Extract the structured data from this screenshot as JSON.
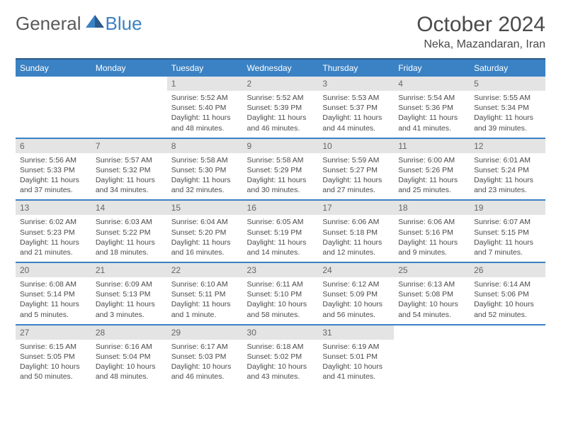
{
  "logo": {
    "general": "General",
    "blue": "Blue"
  },
  "title": "October 2024",
  "location": "Neka, Mazandaran, Iran",
  "colors": {
    "header_bg": "#3b82c4",
    "header_border": "#2c5a8a",
    "daynum_bg": "#e4e4e4",
    "text": "#4a4a4a"
  },
  "weekdays": [
    "Sunday",
    "Monday",
    "Tuesday",
    "Wednesday",
    "Thursday",
    "Friday",
    "Saturday"
  ],
  "weeks": [
    [
      null,
      null,
      {
        "n": "1",
        "sr": "5:52 AM",
        "ss": "5:40 PM",
        "dl": "11 hours and 48 minutes."
      },
      {
        "n": "2",
        "sr": "5:52 AM",
        "ss": "5:39 PM",
        "dl": "11 hours and 46 minutes."
      },
      {
        "n": "3",
        "sr": "5:53 AM",
        "ss": "5:37 PM",
        "dl": "11 hours and 44 minutes."
      },
      {
        "n": "4",
        "sr": "5:54 AM",
        "ss": "5:36 PM",
        "dl": "11 hours and 41 minutes."
      },
      {
        "n": "5",
        "sr": "5:55 AM",
        "ss": "5:34 PM",
        "dl": "11 hours and 39 minutes."
      }
    ],
    [
      {
        "n": "6",
        "sr": "5:56 AM",
        "ss": "5:33 PM",
        "dl": "11 hours and 37 minutes."
      },
      {
        "n": "7",
        "sr": "5:57 AM",
        "ss": "5:32 PM",
        "dl": "11 hours and 34 minutes."
      },
      {
        "n": "8",
        "sr": "5:58 AM",
        "ss": "5:30 PM",
        "dl": "11 hours and 32 minutes."
      },
      {
        "n": "9",
        "sr": "5:58 AM",
        "ss": "5:29 PM",
        "dl": "11 hours and 30 minutes."
      },
      {
        "n": "10",
        "sr": "5:59 AM",
        "ss": "5:27 PM",
        "dl": "11 hours and 27 minutes."
      },
      {
        "n": "11",
        "sr": "6:00 AM",
        "ss": "5:26 PM",
        "dl": "11 hours and 25 minutes."
      },
      {
        "n": "12",
        "sr": "6:01 AM",
        "ss": "5:24 PM",
        "dl": "11 hours and 23 minutes."
      }
    ],
    [
      {
        "n": "13",
        "sr": "6:02 AM",
        "ss": "5:23 PM",
        "dl": "11 hours and 21 minutes."
      },
      {
        "n": "14",
        "sr": "6:03 AM",
        "ss": "5:22 PM",
        "dl": "11 hours and 18 minutes."
      },
      {
        "n": "15",
        "sr": "6:04 AM",
        "ss": "5:20 PM",
        "dl": "11 hours and 16 minutes."
      },
      {
        "n": "16",
        "sr": "6:05 AM",
        "ss": "5:19 PM",
        "dl": "11 hours and 14 minutes."
      },
      {
        "n": "17",
        "sr": "6:06 AM",
        "ss": "5:18 PM",
        "dl": "11 hours and 12 minutes."
      },
      {
        "n": "18",
        "sr": "6:06 AM",
        "ss": "5:16 PM",
        "dl": "11 hours and 9 minutes."
      },
      {
        "n": "19",
        "sr": "6:07 AM",
        "ss": "5:15 PM",
        "dl": "11 hours and 7 minutes."
      }
    ],
    [
      {
        "n": "20",
        "sr": "6:08 AM",
        "ss": "5:14 PM",
        "dl": "11 hours and 5 minutes."
      },
      {
        "n": "21",
        "sr": "6:09 AM",
        "ss": "5:13 PM",
        "dl": "11 hours and 3 minutes."
      },
      {
        "n": "22",
        "sr": "6:10 AM",
        "ss": "5:11 PM",
        "dl": "11 hours and 1 minute."
      },
      {
        "n": "23",
        "sr": "6:11 AM",
        "ss": "5:10 PM",
        "dl": "10 hours and 58 minutes."
      },
      {
        "n": "24",
        "sr": "6:12 AM",
        "ss": "5:09 PM",
        "dl": "10 hours and 56 minutes."
      },
      {
        "n": "25",
        "sr": "6:13 AM",
        "ss": "5:08 PM",
        "dl": "10 hours and 54 minutes."
      },
      {
        "n": "26",
        "sr": "6:14 AM",
        "ss": "5:06 PM",
        "dl": "10 hours and 52 minutes."
      }
    ],
    [
      {
        "n": "27",
        "sr": "6:15 AM",
        "ss": "5:05 PM",
        "dl": "10 hours and 50 minutes."
      },
      {
        "n": "28",
        "sr": "6:16 AM",
        "ss": "5:04 PM",
        "dl": "10 hours and 48 minutes."
      },
      {
        "n": "29",
        "sr": "6:17 AM",
        "ss": "5:03 PM",
        "dl": "10 hours and 46 minutes."
      },
      {
        "n": "30",
        "sr": "6:18 AM",
        "ss": "5:02 PM",
        "dl": "10 hours and 43 minutes."
      },
      {
        "n": "31",
        "sr": "6:19 AM",
        "ss": "5:01 PM",
        "dl": "10 hours and 41 minutes."
      },
      null,
      null
    ]
  ],
  "labels": {
    "sunrise": "Sunrise: ",
    "sunset": "Sunset: ",
    "daylight": "Daylight: "
  }
}
